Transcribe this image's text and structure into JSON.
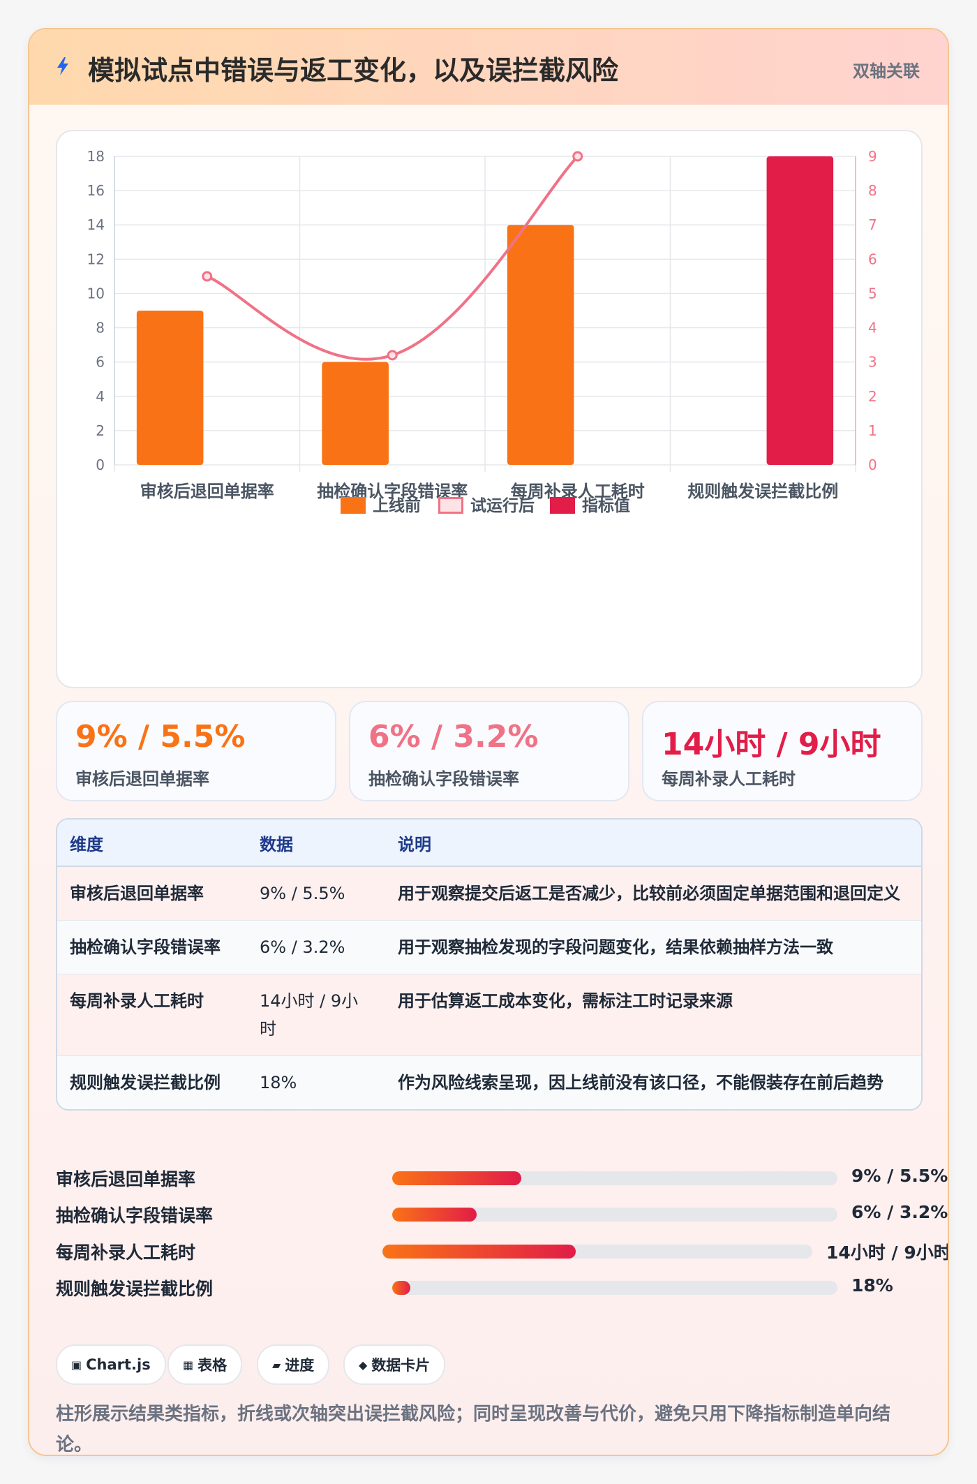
{
  "header": {
    "title": "模拟试点中错误与返工变化，以及误拦截风险",
    "tag": "双轴关联",
    "icon": "lightning-icon"
  },
  "chart_data": {
    "type": "bar",
    "categories": [
      "审核后退回单据率",
      "抽检确认字段错误率",
      "每周补录人工耗时",
      "规则触发误拦截比例"
    ],
    "series": [
      {
        "name": "上线前",
        "type": "bar",
        "axis": "left",
        "values": [
          9,
          6,
          14,
          null
        ],
        "color": "#f97316"
      },
      {
        "name": "试运行后",
        "type": "line",
        "axis": "right",
        "values": [
          5.5,
          3.2,
          9,
          null
        ],
        "color": "#f07286"
      },
      {
        "name": "指标值",
        "type": "bar",
        "axis": "left",
        "values": [
          null,
          null,
          null,
          18
        ],
        "color": "#e11d48"
      }
    ],
    "y_left": {
      "min": 0,
      "max": 18,
      "ticks": [
        "0",
        "2",
        "4",
        "6",
        "8",
        "10",
        "12",
        "14",
        "16",
        "18"
      ]
    },
    "y_right": {
      "min": 0,
      "max": 9,
      "ticks": [
        "0",
        "1",
        "2",
        "3",
        "4",
        "5",
        "6",
        "7",
        "8",
        "9"
      ]
    },
    "grid": true,
    "legend_position": "bottom"
  },
  "stats": [
    {
      "value": "9% / 5.5%",
      "label": "审核后退回单据率",
      "color": "#f97316"
    },
    {
      "value": "6% / 3.2%",
      "label": "抽检确认字段错误率",
      "color": "#f07286"
    },
    {
      "value": "14小时 / 9小时",
      "label": "每周补录人工耗时",
      "color": "#e11d48"
    }
  ],
  "table": {
    "headers": [
      "维度",
      "数据",
      "说明"
    ],
    "rows": [
      [
        "审核后退回单据率",
        "9% / 5.5%",
        "用于观察提交后返工是否减少，比较前必须固定单据范围和退回定义"
      ],
      [
        "抽检确认字段错误率",
        "6% / 3.2%",
        "用于观察抽检发现的字段问题变化，结果依赖抽样方法一致"
      ],
      [
        "每周补录人工耗时",
        "14小时 / 9小时",
        "用于估算返工成本变化，需标注工时记录来源"
      ],
      [
        "规则触发误拦截比例",
        "18%",
        "作为风险线索呈现，因上线前没有该口径，不能假装存在前后趋势"
      ]
    ]
  },
  "progress": [
    {
      "label": "审核后退回单据率",
      "value": "9% / 5.5%",
      "fraction": 0.29
    },
    {
      "label": "抽检确认字段错误率",
      "value": "6% / 3.2%",
      "fraction": 0.19
    },
    {
      "label": "每周补录人工耗时",
      "value": "14小时 / 9小时",
      "fraction": 0.45
    },
    {
      "label": "规则触发误拦截比例",
      "value": "18%",
      "fraction": 0.04
    }
  ],
  "chips": [
    {
      "icon": "▣",
      "label": "Chart.js"
    },
    {
      "icon": "▦",
      "label": "表格"
    },
    {
      "icon": "▰",
      "label": "进度"
    },
    {
      "icon": "◆",
      "label": "数据卡片"
    }
  ],
  "note": "柱形展示结果类指标，折线或次轴突出误拦截风险；同时呈现改善与代价，避免只用下降指标制造单向结论。"
}
